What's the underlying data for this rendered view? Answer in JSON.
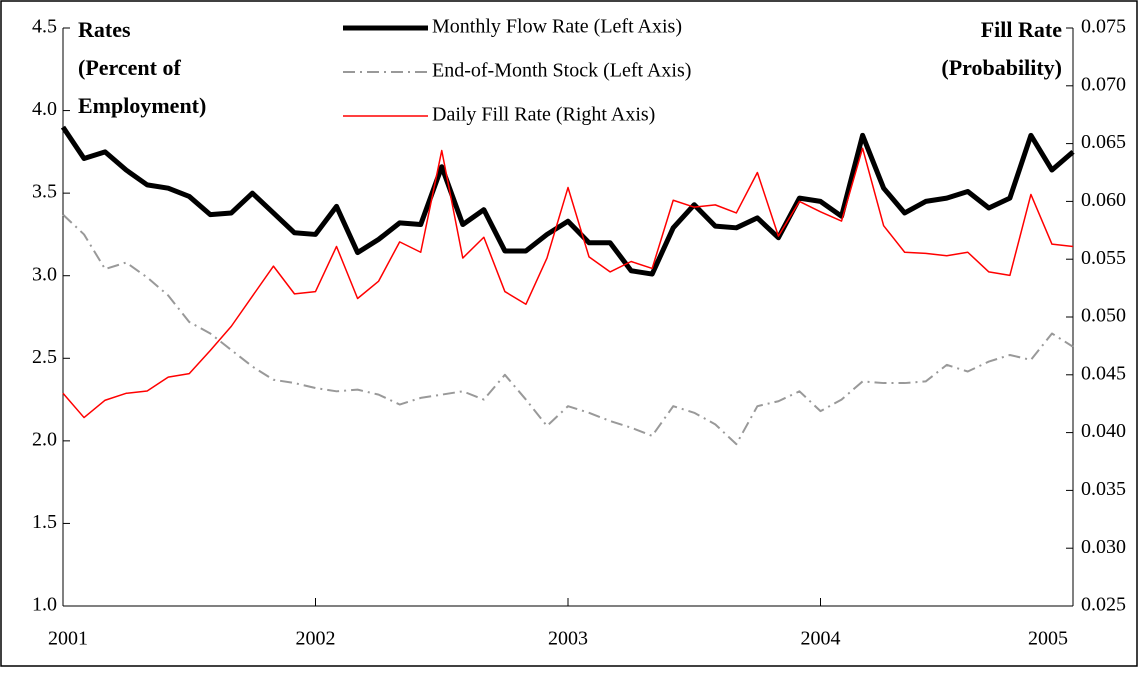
{
  "chart_data": {
    "type": "line",
    "y_label": [
      "Rates",
      "(Percent of",
      "Employment)"
    ],
    "y2_label": [
      "Fill Rate",
      "(Probability)"
    ],
    "x": [
      2001,
      2001.0833,
      2001.1667,
      2001.25,
      2001.3333,
      2001.4167,
      2001.5,
      2001.5833,
      2001.6667,
      2001.75,
      2001.8333,
      2001.9167,
      2002,
      2002.0833,
      2002.1667,
      2002.25,
      2002.3333,
      2002.4167,
      2002.5,
      2002.5833,
      2002.6667,
      2002.75,
      2002.8333,
      2002.9167,
      2003,
      2003.0833,
      2003.1667,
      2003.25,
      2003.3333,
      2003.4167,
      2003.5,
      2003.5833,
      2003.6667,
      2003.75,
      2003.8333,
      2003.9167,
      2004,
      2004.0833,
      2004.1667,
      2004.25,
      2004.3333,
      2004.4167,
      2004.5,
      2004.5833,
      2004.6667,
      2004.75,
      2004.8333,
      2004.9167,
      2005
    ],
    "xlim": [
      2001,
      2005
    ],
    "xticks": [
      2001,
      2002,
      2003,
      2004,
      2005
    ],
    "ylim": [
      1.0,
      4.5
    ],
    "yticks": [
      {
        "value": 1.0,
        "label": "1.0"
      },
      1.5,
      {
        "value": 2.0,
        "label": "2.0"
      },
      2.5,
      {
        "value": 3.0,
        "label": "3.0"
      },
      3.5,
      {
        "value": 4.0,
        "label": "4.0"
      },
      4.5
    ],
    "y2lim": [
      0.025,
      0.075
    ],
    "y2ticks": [
      0.025,
      {
        "value": 0.03,
        "label": "0.030"
      },
      0.035,
      {
        "value": 0.04,
        "label": "0.040"
      },
      0.045,
      {
        "value": 0.05,
        "label": "0.050"
      },
      0.055,
      {
        "value": 0.06,
        "label": "0.060"
      },
      0.065,
      {
        "value": 0.07,
        "label": "0.070"
      },
      0.075
    ],
    "series": [
      {
        "name": "Monthly Flow Rate (Left Axis)",
        "color": "#000000",
        "dash": "solid",
        "values": [
          3.9,
          3.71,
          3.75,
          3.64,
          3.55,
          3.53,
          3.48,
          3.37,
          3.38,
          3.5,
          3.38,
          3.26,
          3.25,
          3.42,
          3.14,
          3.22,
          3.32,
          3.31,
          3.66,
          3.31,
          3.4,
          3.15,
          3.15,
          3.25,
          3.33,
          3.2,
          3.2,
          3.03,
          3.01,
          3.29,
          3.43,
          3.3,
          3.29,
          3.35,
          3.23,
          3.47,
          3.45,
          3.36,
          3.85,
          3.53,
          3.38,
          3.45,
          3.47,
          3.51,
          3.41,
          3.47,
          3.85,
          3.64,
          3.75
        ]
      },
      {
        "name": "End-of-Month Stock (Left Axis)",
        "color": "#999999",
        "dash": "dashdot",
        "values": [
          3.37,
          3.25,
          3.04,
          3.08,
          2.99,
          2.88,
          2.72,
          2.65,
          2.55,
          2.45,
          2.37,
          2.35,
          2.32,
          2.3,
          2.31,
          2.28,
          2.22,
          2.26,
          2.28,
          2.3,
          2.25,
          2.4,
          2.25,
          2.09,
          2.21,
          2.17,
          2.12,
          2.08,
          2.03,
          2.21,
          2.17,
          2.1,
          1.98,
          2.21,
          2.24,
          2.3,
          2.18,
          2.25,
          2.36,
          2.35,
          2.35,
          2.36,
          2.46,
          2.42,
          2.48,
          2.52,
          2.49,
          2.65,
          2.57
        ]
      },
      {
        "name": "Daily Fill Rate (Right Axis)",
        "color": "#ff0000",
        "dash": "solid",
        "axis": "y2",
        "values": [
          0.0434,
          0.0413,
          0.0428,
          0.0434,
          0.0436,
          0.0448,
          0.0451,
          0.0471,
          0.0492,
          0.0518,
          0.0544,
          0.052,
          0.0522,
          0.0561,
          0.0516,
          0.0531,
          0.0565,
          0.0556,
          0.0644,
          0.0551,
          0.0569,
          0.0522,
          0.0511,
          0.0551,
          0.0612,
          0.0552,
          0.0539,
          0.0548,
          0.0542,
          0.0601,
          0.0595,
          0.0597,
          0.059,
          0.0625,
          0.057,
          0.06,
          0.0591,
          0.0583,
          0.0646,
          0.0579,
          0.0556,
          0.0555,
          0.0553,
          0.0556,
          0.0539,
          0.0536,
          0.0606,
          0.0563,
          0.0561
        ]
      }
    ]
  }
}
